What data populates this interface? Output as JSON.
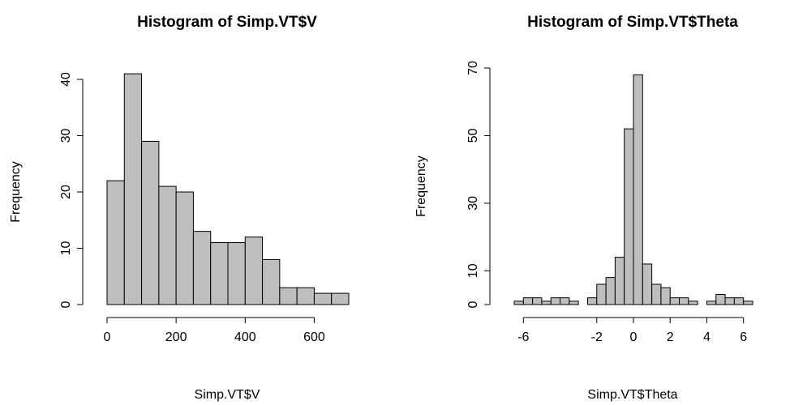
{
  "chart_data": [
    {
      "type": "histogram",
      "title": "Histogram of Simp.VT$V",
      "x_label": "Simp.VT$V",
      "y_label": "Frequency",
      "bins": [
        0,
        50,
        100,
        150,
        200,
        250,
        300,
        350,
        400,
        450,
        500,
        550,
        600,
        650,
        700
      ],
      "values": [
        22,
        41,
        29,
        21,
        20,
        13,
        11,
        11,
        12,
        8,
        3,
        3,
        2,
        2
      ],
      "color": "#bebebe",
      "xlim": [
        0,
        700
      ],
      "xticks": [
        0,
        200,
        400,
        600
      ],
      "ylim": [
        0,
        40
      ],
      "yticks": [
        0,
        10,
        20,
        30,
        40
      ]
    },
    {
      "type": "histogram",
      "title": "Histogram of Simp.VT$Theta",
      "x_label": "Simp.VT$Theta",
      "y_label": "Frequency",
      "bins": [
        -6.5,
        -6,
        -5.5,
        -5,
        -4.5,
        -4,
        -3.5,
        -3,
        -2.5,
        -2,
        -1.5,
        -1,
        -0.5,
        0,
        0.5,
        1,
        1.5,
        2,
        2.5,
        3,
        3.5,
        4,
        4.5,
        5,
        5.5,
        6,
        6.5
      ],
      "values": [
        1,
        2,
        2,
        1,
        2,
        2,
        1,
        0,
        2,
        6,
        8,
        14,
        52,
        68,
        12,
        6,
        5,
        2,
        2,
        1,
        0,
        1,
        3,
        2,
        2,
        1
      ],
      "color": "#bebebe",
      "xlim": [
        -6.5,
        6.5
      ],
      "xticks": [
        -6,
        -2,
        0,
        2,
        4,
        6
      ],
      "ylim": [
        0,
        70
      ],
      "yticks": [
        0,
        10,
        30,
        50,
        70
      ]
    }
  ]
}
